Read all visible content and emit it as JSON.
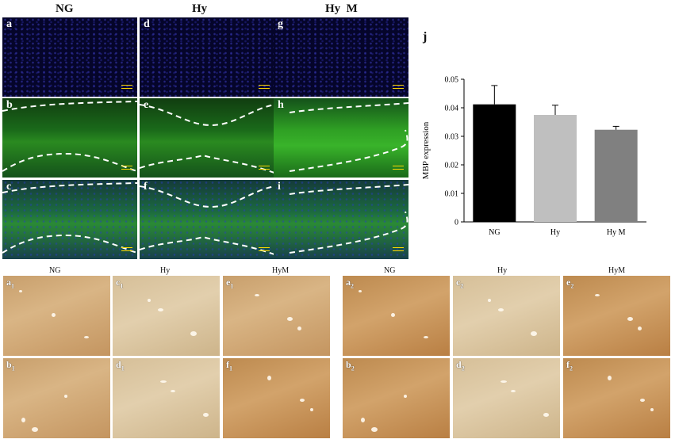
{
  "fluorescence": {
    "headers": [
      "NG",
      "Hy",
      "Hy  M"
    ],
    "panels": [
      {
        "label": "a",
        "type": "blue"
      },
      {
        "label": "d",
        "type": "blue"
      },
      {
        "label": "g",
        "type": "blue"
      },
      {
        "label": "b",
        "type": "green"
      },
      {
        "label": "e",
        "type": "green"
      },
      {
        "label": "h",
        "type": "green2"
      },
      {
        "label": "c",
        "type": "merge"
      },
      {
        "label": "f",
        "type": "merge"
      },
      {
        "label": "i",
        "type": "merge"
      }
    ]
  },
  "chart_panel_label": "j",
  "chart_data": {
    "type": "bar",
    "categories": [
      "NG",
      "Hy",
      "Hy M"
    ],
    "values": [
      0.0412,
      0.0375,
      0.0323
    ],
    "errors": [
      0.0066,
      0.0034,
      0.0012
    ],
    "bar_colors": [
      "#000000",
      "#bfbfbf",
      "#808080"
    ],
    "ylabel": "MBP expression",
    "xlabel": "",
    "ylim": [
      0,
      0.05
    ],
    "yticks": [
      "0",
      "0.01",
      "0.02",
      "0.03",
      "0.04",
      "0.05"
    ],
    "grid": false
  },
  "ihc_left": {
    "headers": [
      "NG",
      "Hy",
      "HyM"
    ],
    "panels": [
      {
        "label": "a",
        "sub": "1",
        "tone": "brown"
      },
      {
        "label": "c",
        "sub": "1",
        "tone": "brownL"
      },
      {
        "label": "e",
        "sub": "1",
        "tone": "brown"
      },
      {
        "label": "b",
        "sub": "1",
        "tone": "brown"
      },
      {
        "label": "d",
        "sub": "1",
        "tone": "brownL"
      },
      {
        "label": "f",
        "sub": "1",
        "tone": "brownD"
      }
    ]
  },
  "ihc_right": {
    "headers": [
      "NG",
      "Hy",
      "HyM"
    ],
    "panels": [
      {
        "label": "a",
        "sub": "2",
        "tone": "brownD"
      },
      {
        "label": "c",
        "sub": "2",
        "tone": "brownL"
      },
      {
        "label": "e",
        "sub": "2",
        "tone": "brownD"
      },
      {
        "label": "b",
        "sub": "2",
        "tone": "brownD"
      },
      {
        "label": "d",
        "sub": "2",
        "tone": "brownL"
      },
      {
        "label": "f",
        "sub": "2",
        "tone": "brownD"
      }
    ]
  }
}
